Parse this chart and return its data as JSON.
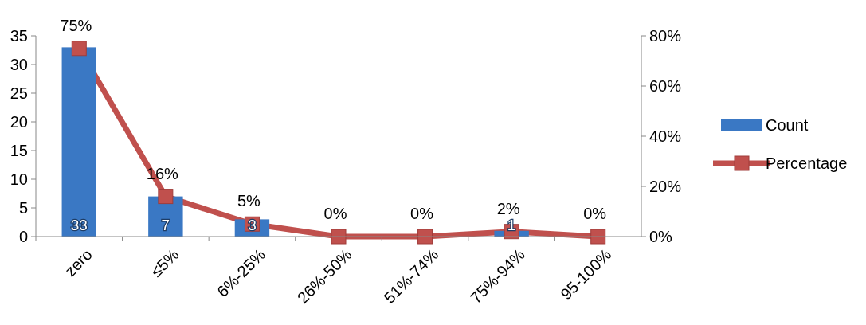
{
  "chart_data": {
    "type": "bar",
    "categories": [
      "zero",
      "≤5%",
      "6%-25%",
      "26%-50%",
      "51%-74%",
      "75%-94%",
      "95-100%"
    ],
    "series": [
      {
        "name": "Count",
        "color": "#3a78c4",
        "values": [
          33,
          7,
          3,
          0,
          0,
          1,
          0
        ],
        "value_labels": [
          "33",
          "7",
          "3",
          null,
          null,
          "1",
          null
        ]
      },
      {
        "name": "Percentage",
        "type": "line",
        "axis": "y2",
        "color": "#c0504d",
        "marker": "square",
        "values": [
          75,
          16,
          5,
          0,
          0,
          2,
          0
        ],
        "value_labels": [
          "75%",
          "16%",
          "5%",
          "0%",
          "0%",
          "2%",
          "0%"
        ]
      }
    ],
    "ylim": [
      0,
      35
    ],
    "yticks": [
      0,
      5,
      10,
      15,
      20,
      25,
      30,
      35
    ],
    "y2lim": [
      0,
      80
    ],
    "y2ticks": [
      {
        "value": 0,
        "label": "0%"
      },
      {
        "value": 20,
        "label": "20%"
      },
      {
        "value": 40,
        "label": "40%"
      },
      {
        "value": 60,
        "label": "60%"
      },
      {
        "value": 80,
        "label": "80%"
      }
    ],
    "grid": false,
    "legend": "right"
  }
}
